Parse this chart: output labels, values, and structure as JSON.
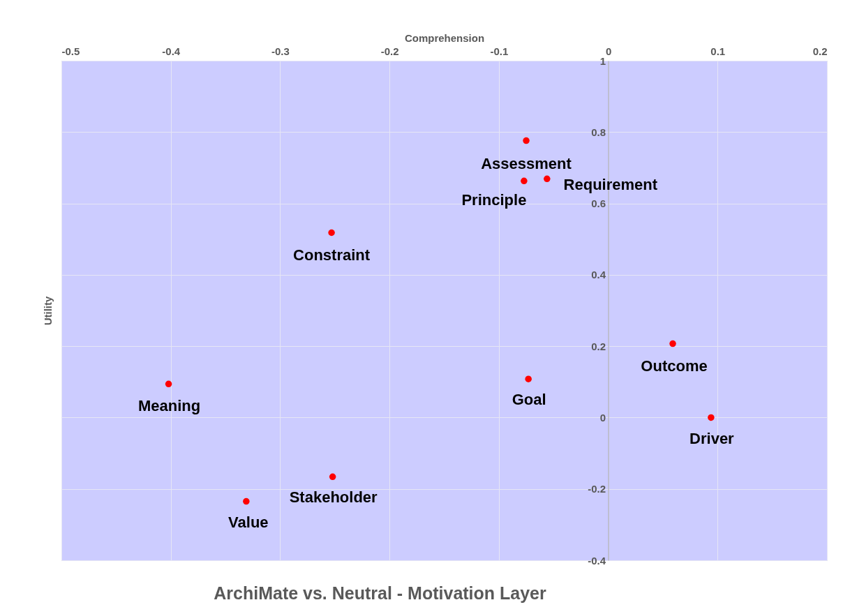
{
  "chart_data": {
    "type": "scatter",
    "title": "ArchiMate vs. Neutral - Motivation Layer",
    "xlabel": "Comprehension",
    "ylabel": "Utility",
    "x": [
      -0.075,
      -0.056,
      -0.077,
      -0.253,
      0.059,
      -0.073,
      -0.402,
      0.094,
      -0.252,
      -0.331
    ],
    "series": [
      {
        "color": "#ff0000",
        "values": [
          0.776,
          0.669,
          0.663,
          0.518,
          0.207,
          0.108,
          0.094,
          0.0,
          -0.166,
          -0.235
        ]
      }
    ],
    "annotations": [
      {
        "text": "Assessment",
        "x": -0.075,
        "y": 0.776
      },
      {
        "text": "Requirement",
        "x": -0.056,
        "y": 0.669
      },
      {
        "text": "Principle",
        "x": -0.077,
        "y": 0.663
      },
      {
        "text": "Constraint",
        "x": -0.253,
        "y": 0.518
      },
      {
        "text": "Outcome",
        "x": 0.059,
        "y": 0.207
      },
      {
        "text": "Goal",
        "x": -0.073,
        "y": 0.108
      },
      {
        "text": "Meaning",
        "x": -0.402,
        "y": 0.094
      },
      {
        "text": "Driver",
        "x": 0.094,
        "y": 0.0
      },
      {
        "text": "Stakeholder",
        "x": -0.252,
        "y": -0.166
      },
      {
        "text": "Value",
        "x": -0.331,
        "y": -0.235
      }
    ],
    "xlim": [
      -0.5,
      0.2
    ],
    "ylim": [
      -0.4,
      1
    ],
    "xticks": [
      -0.5,
      -0.4,
      -0.3,
      -0.2,
      -0.1,
      0,
      0.1,
      0.2
    ],
    "yticks": [
      -0.4,
      -0.2,
      0,
      0.2,
      0.4,
      0.6,
      0.8,
      1
    ],
    "grid": true,
    "marker": "circle"
  }
}
